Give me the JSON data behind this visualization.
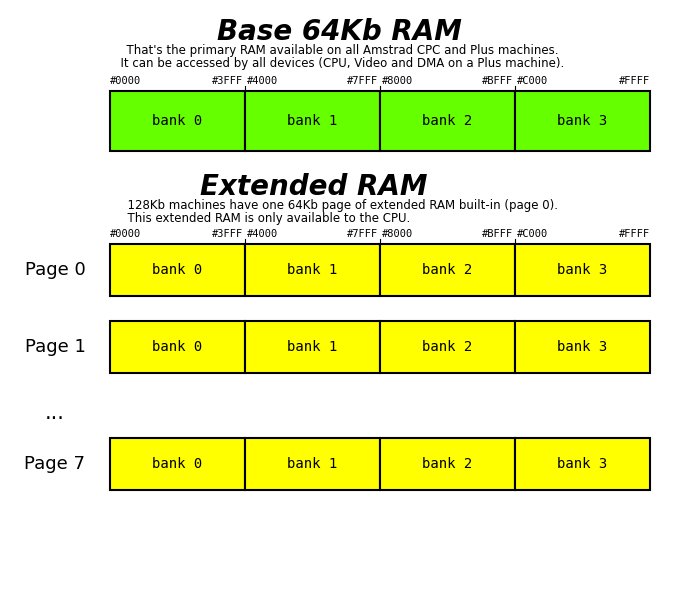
{
  "title1": "Base 64Kb RAM",
  "subtitle1_line1": "  That's the primary RAM available on all Amstrad CPC and Plus machines.",
  "subtitle1_line2": "  It can be accessed by all devices (CPU, Video and DMA on a Plus machine).",
  "title2": "Extended RAM",
  "subtitle2_line1": "  128Kb machines have one 64Kb page of extended RAM built-in (page 0).",
  "subtitle2_line2": "  This extended RAM is only available to the CPU.",
  "addr_labels": [
    "#0000",
    "#3FFF",
    "#4000",
    "#7FFF",
    "#8000",
    "#BFFF",
    "#C000",
    "#FFFF"
  ],
  "bank_labels": [
    "bank 0",
    "bank 1",
    "bank 2",
    "bank 3"
  ],
  "page_labels": [
    "Page 0",
    "Page 1",
    "Page 7"
  ],
  "dots_label": "...",
  "base_color": "#66ff00",
  "ext_color": "#ffff00",
  "border_color": "#000000",
  "bg_color": "#ffffff",
  "title1_fontsize": 20,
  "title2_fontsize": 20,
  "subtitle_fontsize": 8.5,
  "addr_fontsize": 7.5,
  "bank_fontsize": 10,
  "page_label_fontsize": 13,
  "dots_fontsize": 15
}
